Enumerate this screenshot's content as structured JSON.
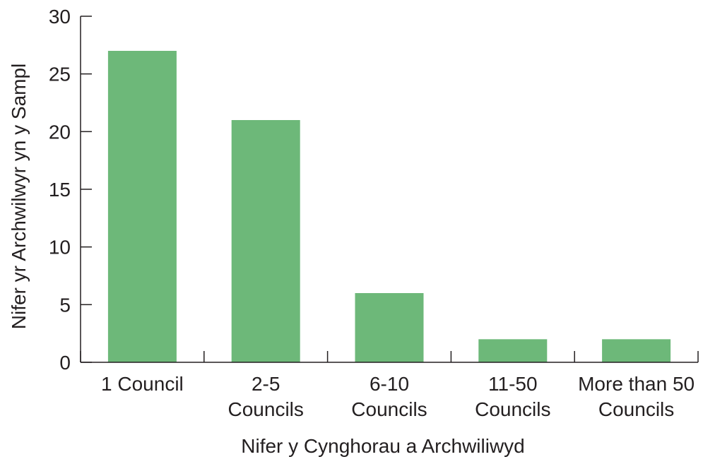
{
  "chart_data": {
    "type": "bar",
    "title": "",
    "xlabel": "Nifer y Cynghorau a Archwiliwyd",
    "ylabel": "Nifer yr Archwilwyr yn y Sampl",
    "categories": [
      [
        "1 Council"
      ],
      [
        "2-5",
        "Councils"
      ],
      [
        "6-10",
        "Councils"
      ],
      [
        "11-50",
        "Councils"
      ],
      [
        "More than 50",
        "Councils"
      ]
    ],
    "values": [
      27,
      21,
      6,
      2,
      2
    ],
    "ylim": [
      0,
      30
    ],
    "yticks": [
      0,
      5,
      10,
      15,
      20,
      25,
      30
    ],
    "grid": false,
    "legend": "none",
    "bar_color": "#6db879",
    "axis_color": "#231f20"
  }
}
